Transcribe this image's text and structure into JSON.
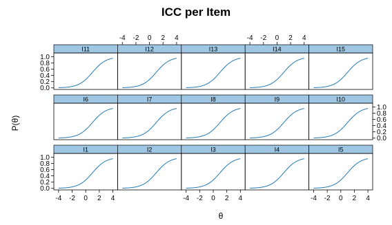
{
  "chart_data": {
    "type": "line",
    "title": "ICC per Item",
    "xlabel": "θ",
    "ylabel": "P(θ)",
    "xlim": [
      -4.7,
      4.7
    ],
    "ylim": [
      -0.05,
      1.12
    ],
    "xticks": [
      -4,
      -2,
      0,
      2,
      4
    ],
    "yticks": [
      0.0,
      0.2,
      0.4,
      0.6,
      0.8,
      1.0
    ],
    "curve_color": "#1f77b4",
    "strip_color": "#9fc7e3",
    "grid": false,
    "layout_rows": [
      [
        "I11",
        "I12",
        "I13",
        "I14",
        "I15"
      ],
      [
        "I6",
        "I7",
        "I8",
        "I9",
        "I10"
      ],
      [
        "I1",
        "I2",
        "I3",
        "I4",
        "I5"
      ]
    ],
    "series": [
      {
        "name": "I1",
        "a": 1.0,
        "b": 1.0
      },
      {
        "name": "I2",
        "a": 1.0,
        "b": 1.0
      },
      {
        "name": "I3",
        "a": 1.0,
        "b": 1.0
      },
      {
        "name": "I4",
        "a": 1.0,
        "b": 1.0
      },
      {
        "name": "I5",
        "a": 1.0,
        "b": 1.0
      },
      {
        "name": "I6",
        "a": 1.0,
        "b": 1.0
      },
      {
        "name": "I7",
        "a": 1.0,
        "b": 1.0
      },
      {
        "name": "I8",
        "a": 1.0,
        "b": 1.0
      },
      {
        "name": "I9",
        "a": 1.0,
        "b": 1.0
      },
      {
        "name": "I10",
        "a": 1.0,
        "b": 1.0
      },
      {
        "name": "I11",
        "a": 1.0,
        "b": 1.0
      },
      {
        "name": "I12",
        "a": 1.0,
        "b": 1.0
      },
      {
        "name": "I13",
        "a": 1.0,
        "b": 1.0
      },
      {
        "name": "I14",
        "a": 1.0,
        "b": 1.0
      },
      {
        "name": "I15",
        "a": 1.0,
        "b": 1.0
      }
    ]
  }
}
